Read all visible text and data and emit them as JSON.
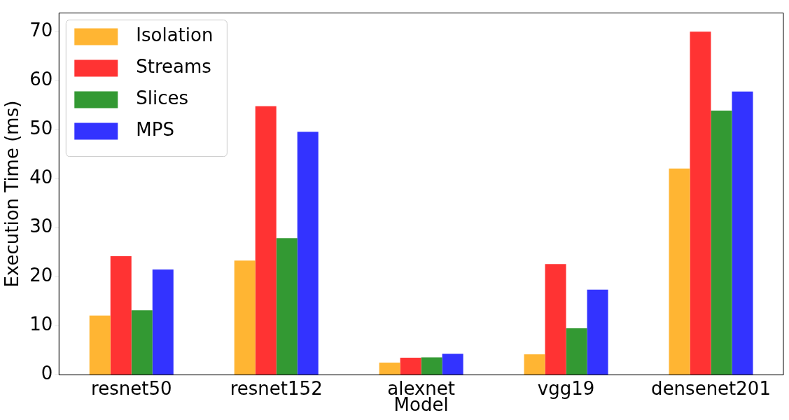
{
  "chart_data": {
    "type": "bar",
    "xlabel": "Model",
    "ylabel": "Execution Time (ms)",
    "categories": [
      "resnet50",
      "resnet152",
      "alexnet",
      "vgg19",
      "densenet201"
    ],
    "series": [
      {
        "name": "Isolation",
        "color": "#ffb533",
        "values": [
          12.1,
          23.3,
          2.5,
          4.2,
          42.1
        ]
      },
      {
        "name": "Streams",
        "color": "#ff3333",
        "values": [
          24.2,
          54.8,
          3.5,
          22.6,
          70.0
        ]
      },
      {
        "name": "Slices",
        "color": "#339933",
        "values": [
          13.2,
          27.9,
          3.6,
          9.5,
          53.9
        ]
      },
      {
        "name": "MPS",
        "color": "#3333ff",
        "values": [
          21.5,
          49.6,
          4.3,
          17.4,
          57.8
        ]
      }
    ],
    "ylim": [
      0,
      73.8
    ],
    "yticks": [
      0,
      10,
      20,
      30,
      40,
      50,
      60,
      70
    ],
    "grid": false,
    "legend": "top left"
  }
}
